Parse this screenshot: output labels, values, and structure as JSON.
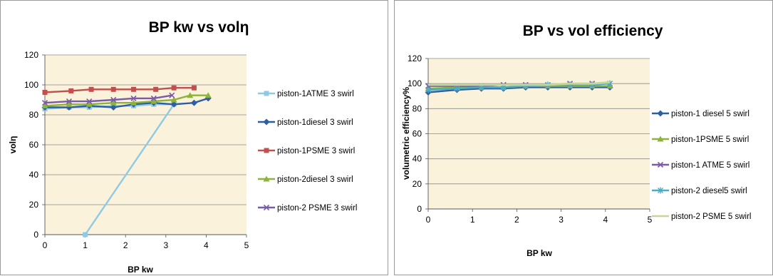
{
  "chart_data": [
    {
      "type": "line",
      "title": "BP kw vs volη",
      "xlabel": "BP kw",
      "ylabel": "volη",
      "xlim": [
        0,
        5
      ],
      "ylim": [
        0,
        120
      ],
      "xticks": [
        0,
        1,
        2,
        3,
        4,
        5
      ],
      "yticks": [
        0,
        20,
        40,
        60,
        80,
        100,
        120
      ],
      "grid": "horizontal",
      "legend_position": "right",
      "plot_background": "#fbf2dc",
      "series": [
        {
          "name": "piston-1ATME 3 swirl",
          "color": "#8ecae6",
          "marker": "square",
          "points": [
            [
              0,
              84
            ],
            [
              0.6,
              85
            ],
            [
              1.1,
              85
            ],
            [
              1.7,
              86
            ],
            [
              2.2,
              86
            ],
            [
              2.7,
              87
            ],
            [
              3.2,
              87
            ],
            [
              1,
              0
            ]
          ]
        },
        {
          "name": "piston-1diesel 3 swirl",
          "color": "#2e5f9e",
          "marker": "diamond",
          "points": [
            [
              0,
              85
            ],
            [
              0.6,
              85
            ],
            [
              1.1,
              86
            ],
            [
              1.7,
              85
            ],
            [
              2.2,
              87
            ],
            [
              2.7,
              88
            ],
            [
              3.2,
              87
            ],
            [
              3.7,
              88
            ],
            [
              4.05,
              91
            ]
          ]
        },
        {
          "name": "piston-1PSME 3 swirl",
          "color": "#c0504d",
          "marker": "square",
          "points": [
            [
              0,
              95
            ],
            [
              0.65,
              96
            ],
            [
              1.15,
              97
            ],
            [
              1.7,
              97
            ],
            [
              2.2,
              97
            ],
            [
              2.75,
              97
            ],
            [
              3.2,
              98
            ],
            [
              3.7,
              98
            ]
          ]
        },
        {
          "name": "piston-2diesel 3 swirl",
          "color": "#8db33a",
          "marker": "triangle",
          "points": [
            [
              0,
              86
            ],
            [
              0.6,
              87
            ],
            [
              1.1,
              87
            ],
            [
              1.7,
              88
            ],
            [
              2.2,
              88
            ],
            [
              2.7,
              89
            ],
            [
              3.2,
              90
            ],
            [
              3.6,
              93
            ],
            [
              4.05,
              93
            ]
          ]
        },
        {
          "name": "piston-2 PSME 3 swirl",
          "color": "#7a5ba6",
          "marker": "x",
          "points": [
            [
              0,
              88
            ],
            [
              0.6,
              89
            ],
            [
              1.1,
              89
            ],
            [
              1.7,
              90
            ],
            [
              2.2,
              91
            ],
            [
              2.7,
              91
            ],
            [
              3.15,
              93
            ]
          ]
        }
      ]
    },
    {
      "type": "line",
      "title": "BP vs vol efficiency",
      "xlabel": "BP kw",
      "ylabel": "volumetric efficiency%",
      "xlim": [
        0,
        5
      ],
      "ylim": [
        0,
        120
      ],
      "xticks": [
        0,
        1,
        2,
        3,
        4,
        5
      ],
      "yticks": [
        0,
        20,
        40,
        60,
        80,
        100,
        120
      ],
      "grid": "horizontal",
      "legend_position": "right",
      "plot_background": "#fbf2dc",
      "series": [
        {
          "name": "piston-1 diesel 5 swirl",
          "color": "#2e5f9e",
          "marker": "diamond",
          "points": [
            [
              0,
              93
            ],
            [
              0.65,
              95
            ],
            [
              1.2,
              96
            ],
            [
              1.7,
              96
            ],
            [
              2.2,
              97
            ],
            [
              2.7,
              97
            ],
            [
              3.2,
              97
            ],
            [
              3.7,
              97
            ],
            [
              4.1,
              97
            ]
          ]
        },
        {
          "name": "piston-1PSME 5 swirl",
          "color": "#8db33a",
          "marker": "triangle",
          "points": [
            [
              0,
              96
            ],
            [
              0.65,
              97
            ],
            [
              1.2,
              97
            ],
            [
              1.7,
              97
            ],
            [
              2.2,
              98
            ],
            [
              2.7,
              98
            ],
            [
              3.2,
              98
            ],
            [
              3.7,
              98
            ],
            [
              4.1,
              98
            ]
          ]
        },
        {
          "name": "piston-1 ATME 5 swirl",
          "color": "#7a5ba6",
          "marker": "x",
          "points": [
            [
              0,
              98
            ],
            [
              0.65,
              98
            ],
            [
              1.2,
              98
            ],
            [
              1.7,
              99
            ],
            [
              2.2,
              99
            ],
            [
              2.7,
              99
            ],
            [
              3.2,
              100
            ],
            [
              3.7,
              100
            ],
            [
              4.1,
              100
            ]
          ]
        },
        {
          "name": "piston-2 diesel5 swirl",
          "color": "#4bacc6",
          "marker": "star",
          "points": [
            [
              0,
              95
            ],
            [
              0.65,
              96
            ],
            [
              1.2,
              97
            ],
            [
              1.7,
              97
            ],
            [
              2.2,
              98
            ],
            [
              2.7,
              99
            ],
            [
              3.2,
              99
            ],
            [
              3.7,
              99
            ],
            [
              4.1,
              100
            ]
          ]
        },
        {
          "name": "piston-2 PSME 5 swirl",
          "color": "#c3d69b",
          "marker": "none",
          "points": [
            [
              0,
              99
            ],
            [
              0.65,
              99
            ],
            [
              1.2,
              99
            ],
            [
              1.7,
              99
            ],
            [
              2.2,
              99
            ],
            [
              2.7,
              99
            ],
            [
              3.2,
              100
            ],
            [
              3.7,
              100
            ],
            [
              4.1,
              101
            ]
          ]
        }
      ]
    }
  ]
}
